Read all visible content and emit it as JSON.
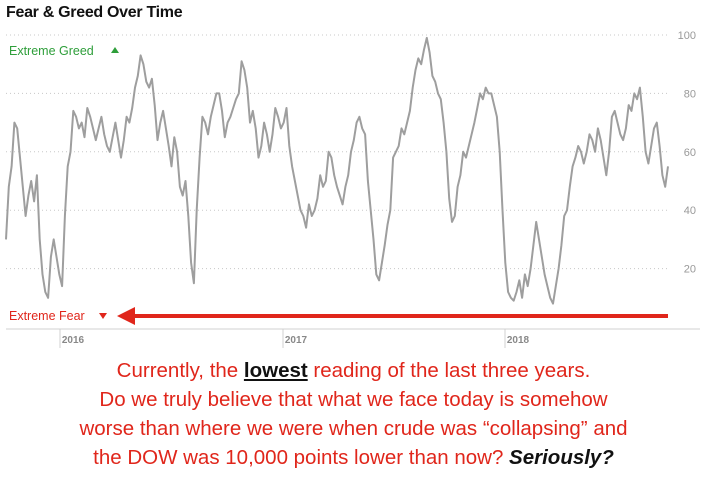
{
  "chart_data": {
    "type": "line",
    "title": "Fear & Greed Over Time",
    "ylim": [
      0,
      100
    ],
    "yticks": [
      20,
      40,
      60,
      80,
      100
    ],
    "grid": true,
    "xlabels": [
      "2016",
      "2017",
      "2018"
    ],
    "annotations": {
      "extreme_greed": "Extreme Greed",
      "extreme_fear": "Extreme Fear"
    },
    "line_color": "#9e9e9e",
    "arrow_color": "#e0261b",
    "series": [
      {
        "values": [
          30,
          48,
          55,
          70,
          68,
          58,
          48,
          38,
          45,
          50,
          43,
          52,
          30,
          18,
          12,
          10,
          24,
          30,
          24,
          18,
          14,
          38,
          55,
          60,
          74,
          72,
          68,
          70,
          65,
          75,
          72,
          68,
          64,
          68,
          72,
          66,
          62,
          60,
          65,
          70,
          64,
          58,
          64,
          72,
          70,
          75,
          82,
          86,
          93,
          90,
          84,
          82,
          85,
          76,
          64,
          70,
          74,
          68,
          62,
          55,
          65,
          60,
          48,
          45,
          50,
          38,
          22,
          15,
          40,
          58,
          72,
          70,
          66,
          72,
          76,
          80,
          80,
          74,
          65,
          70,
          72,
          75,
          78,
          80,
          91,
          88,
          82,
          70,
          74,
          68,
          58,
          62,
          70,
          66,
          60,
          66,
          75,
          72,
          68,
          70,
          75,
          62,
          55,
          50,
          45,
          40,
          38,
          34,
          42,
          38,
          40,
          44,
          52,
          48,
          50,
          60,
          58,
          52,
          48,
          45,
          42,
          48,
          52,
          60,
          64,
          70,
          72,
          68,
          66,
          50,
          40,
          30,
          18,
          16,
          22,
          28,
          35,
          40,
          58,
          60,
          62,
          68,
          66,
          70,
          74,
          82,
          88,
          92,
          90,
          95,
          99,
          94,
          86,
          84,
          80,
          78,
          70,
          60,
          44,
          36,
          38,
          48,
          52,
          60,
          58,
          62,
          66,
          70,
          75,
          80,
          78,
          82,
          80,
          80,
          76,
          72,
          60,
          40,
          22,
          12,
          10,
          9,
          12,
          16,
          10,
          18,
          14,
          20,
          28,
          36,
          30,
          24,
          18,
          14,
          10,
          8,
          14,
          20,
          28,
          38,
          40,
          48,
          55,
          58,
          62,
          60,
          56,
          60,
          66,
          64,
          60,
          68,
          64,
          58,
          52,
          60,
          72,
          74,
          70,
          66,
          64,
          68,
          76,
          74,
          80,
          78,
          82,
          72,
          60,
          56,
          62,
          68,
          70,
          62,
          52,
          48,
          55
        ]
      }
    ]
  },
  "caption": {
    "line1_pre": "Currently, the ",
    "line1_em": "lowest",
    "line1_post": " reading of the last three years.",
    "line2": "Do we truly believe that what we face today is somehow",
    "line3": "worse than where we were when crude was “collapsing” and",
    "line4_pre": "the DOW was 10,000 points lower than now?  ",
    "line4_em": "Seriously?"
  }
}
